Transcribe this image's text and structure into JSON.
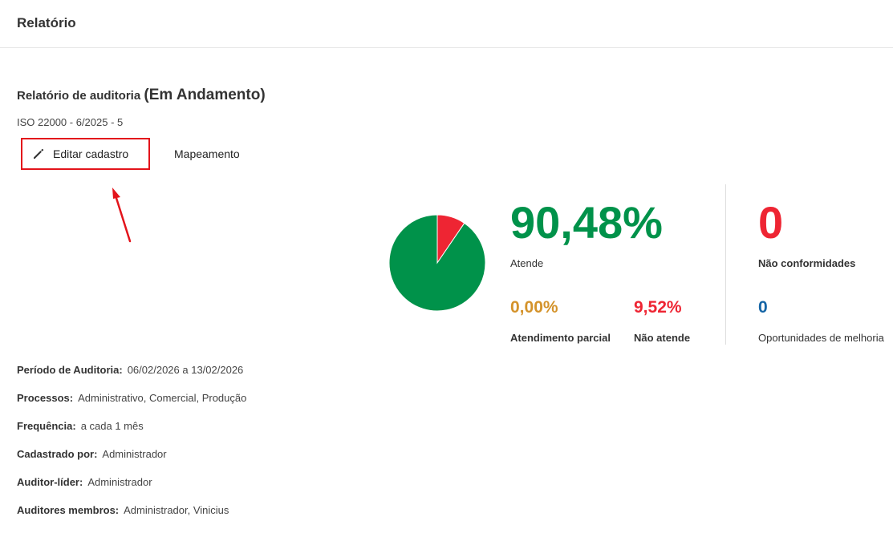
{
  "header": {
    "title": "Relatório"
  },
  "report": {
    "title": "Relatório de auditoria",
    "status": "(Em Andamento)",
    "subtitle": "ISO 22000 - 6/2025 - 5"
  },
  "actions": {
    "edit_label": "Editar cadastro",
    "map_label": "Mapeamento"
  },
  "stats": {
    "atende": {
      "value": "90,48%",
      "label": "Atende",
      "color": "#00924a"
    },
    "parcial": {
      "value": "0,00%",
      "label": "Atendimento parcial",
      "color": "#d4932b"
    },
    "nao_atende": {
      "value": "9,52%",
      "label": "Não atende",
      "color": "#ee2533"
    },
    "nao_conformidades": {
      "value": "0",
      "label": "Não conformidades",
      "color": "#ee2533"
    },
    "oportunidades": {
      "value": "0",
      "label": "Oportunidades de melhoria",
      "color": "#1565a6"
    }
  },
  "pie": {
    "slices": [
      {
        "label": "Atende",
        "fraction": 0.9048,
        "color": "#00924a"
      },
      {
        "label": "Não atende",
        "fraction": 0.0952,
        "color": "#ee2533"
      }
    ]
  },
  "details": [
    {
      "key": "Período de Auditoria:",
      "value": "06/02/2026 a 13/02/2026"
    },
    {
      "key": "Processos:",
      "value": "Administrativo, Comercial, Produção"
    },
    {
      "key": "Frequência:",
      "value": "a cada 1 mês"
    },
    {
      "key": "Cadastrado por:",
      "value": "Administrador"
    },
    {
      "key": "Auditor-líder:",
      "value": "Administrador"
    },
    {
      "key": "Auditores membros:",
      "value": "Administrador, Vinicius"
    }
  ],
  "icons": {
    "edit": "pencil-icon",
    "annotation": "red-arrow"
  }
}
